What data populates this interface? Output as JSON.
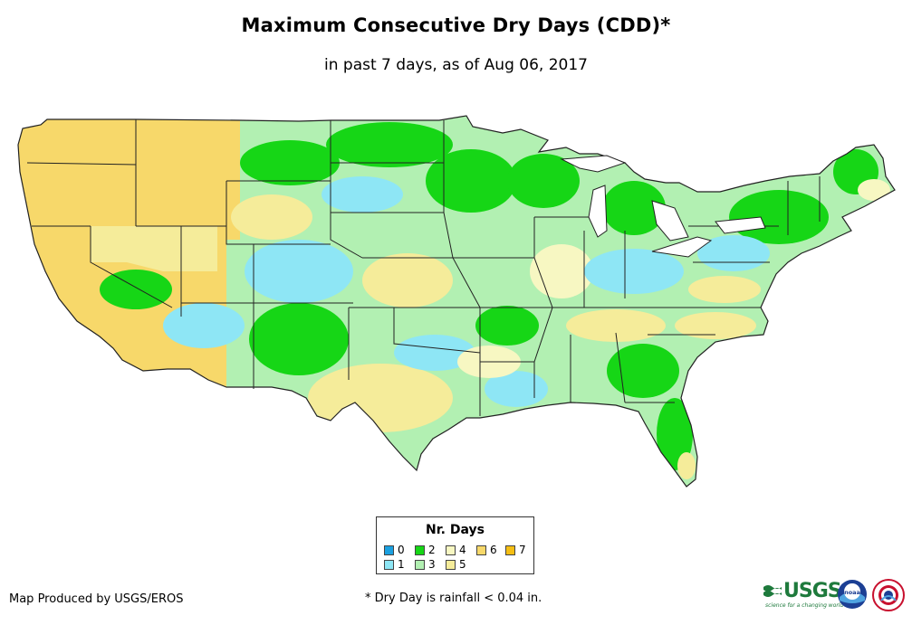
{
  "header": {
    "title": "Maximum Consecutive Dry Days (CDD)*",
    "subtitle": "in past 7 days, as of Aug 06, 2017"
  },
  "legend": {
    "title": "Nr. Days",
    "items": [
      {
        "label": "0",
        "color": "#1ba0e0"
      },
      {
        "label": "1",
        "color": "#8ee6f5"
      },
      {
        "label": "2",
        "color": "#16d616"
      },
      {
        "label": "3",
        "color": "#b2f0b2"
      },
      {
        "label": "4",
        "color": "#f7f7c2"
      },
      {
        "label": "5",
        "color": "#f5ec9a"
      },
      {
        "label": "6",
        "color": "#f7d86a"
      },
      {
        "label": "7",
        "color": "#f5be14"
      }
    ]
  },
  "footer": {
    "credit": "Map Produced by USGS/EROS",
    "footnote": "* Dry Day is rainfall < 0.04 in."
  },
  "logos": {
    "usgs": "USGS",
    "usgs_tagline": "science for a changing world",
    "noaa": "noaa"
  },
  "colors": {
    "state_border": "#222222",
    "water": "#ffffff"
  }
}
